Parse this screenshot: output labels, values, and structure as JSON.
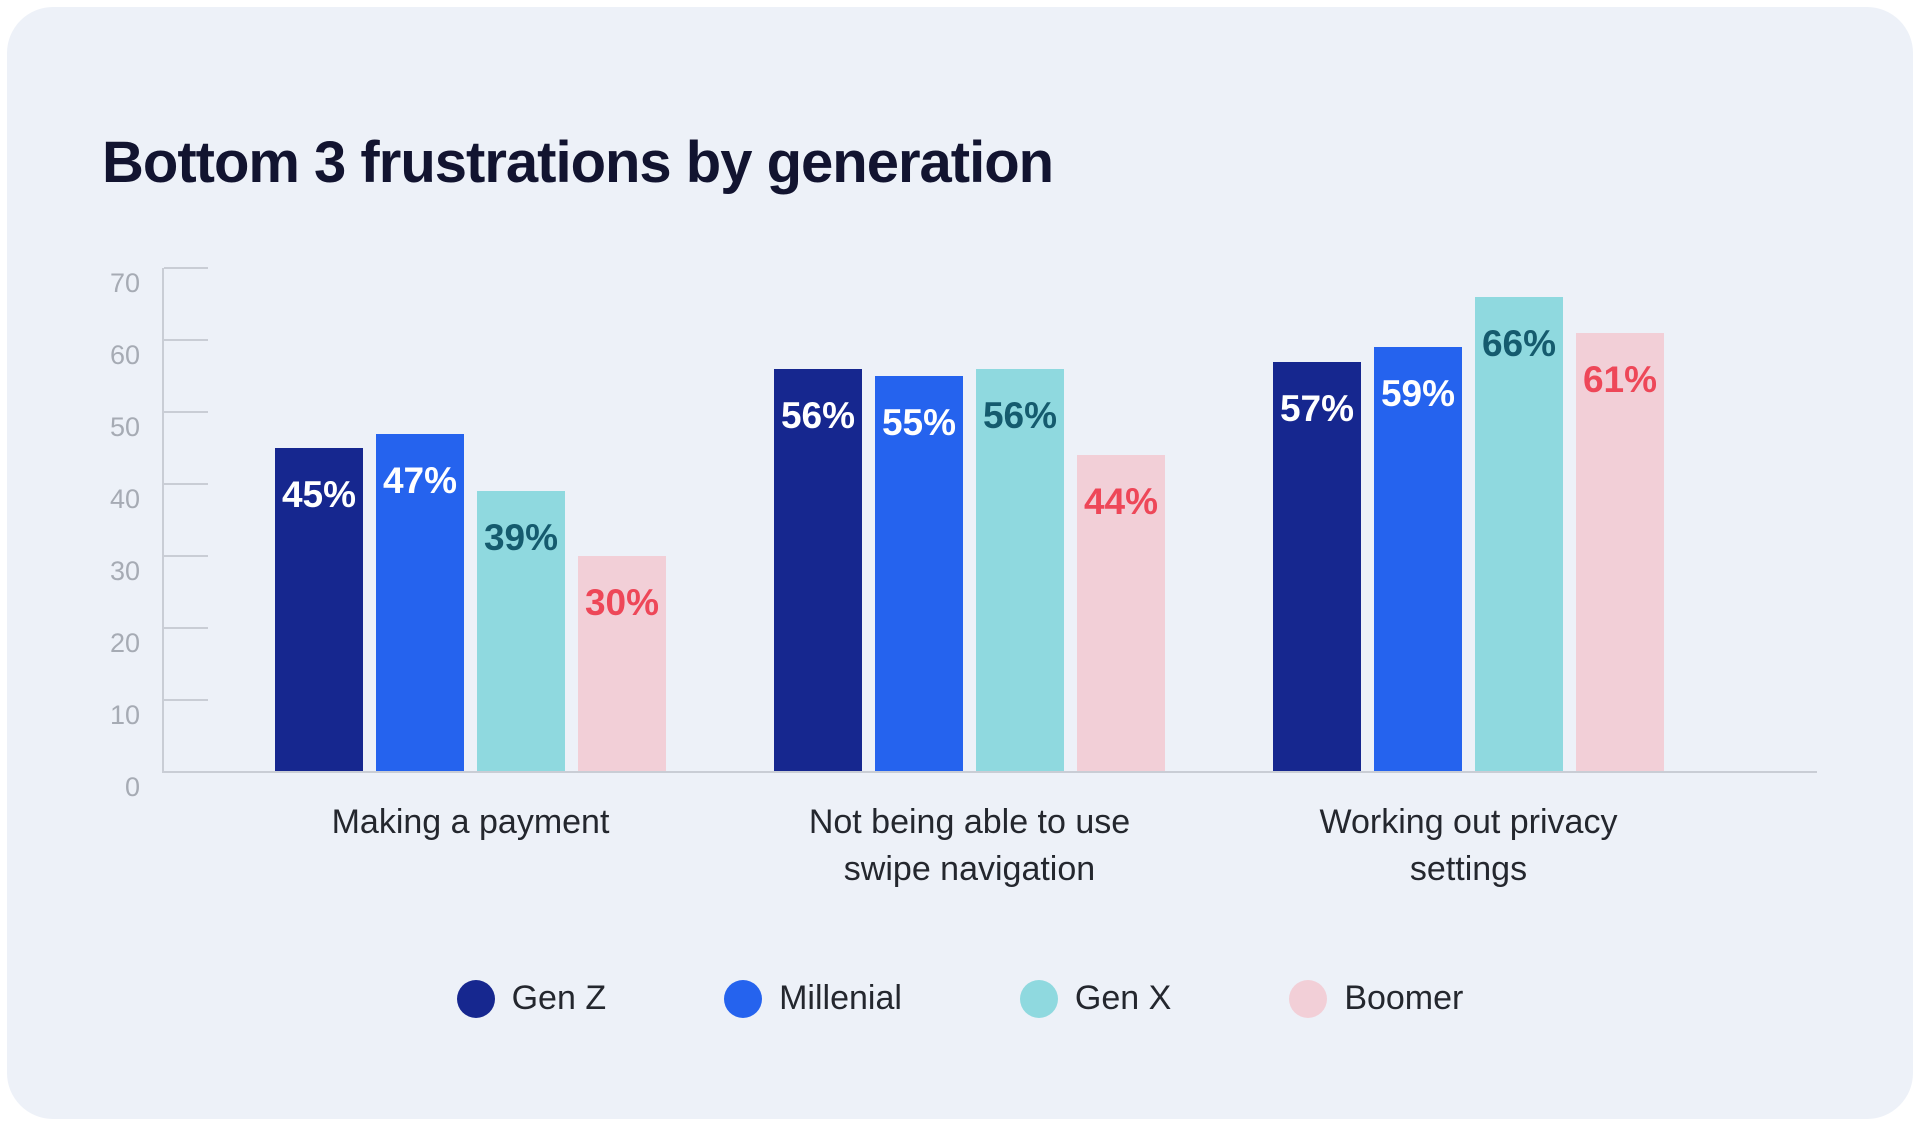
{
  "page": {
    "outer_background": "#FFFFFF",
    "card_background": "#EDF1F8"
  },
  "chart_data": {
    "type": "bar",
    "title": "Bottom 3 frustrations by generation",
    "title_color": "#121430",
    "categories": [
      "Making a payment",
      "Not being able to use swipe navigation",
      "Working out privacy settings"
    ],
    "series": [
      {
        "name": "Gen Z",
        "color": "#16278F",
        "label_color": "#FFFFFF",
        "values": [
          45,
          56,
          57
        ]
      },
      {
        "name": "Millenial",
        "color": "#2563EE",
        "label_color": "#FFFFFF",
        "values": [
          47,
          55,
          59
        ]
      },
      {
        "name": "Gen X",
        "color": "#8FD9DF",
        "label_color": "#155B6E",
        "values": [
          39,
          56,
          66
        ]
      },
      {
        "name": "Boomer",
        "color": "#F2CFD7",
        "label_color": "#EE4758",
        "values": [
          30,
          44,
          61
        ]
      }
    ],
    "value_suffix": "%",
    "ylabel": "",
    "xlabel": "",
    "ylim": [
      0,
      70
    ],
    "yticks": [
      0,
      10,
      20,
      30,
      40,
      50,
      60,
      70
    ],
    "grid": false,
    "legend_position": "bottom",
    "axis_color": "#C9CDD5",
    "tick_label_color": "#A6ABB4",
    "category_label_color": "#24272E"
  }
}
